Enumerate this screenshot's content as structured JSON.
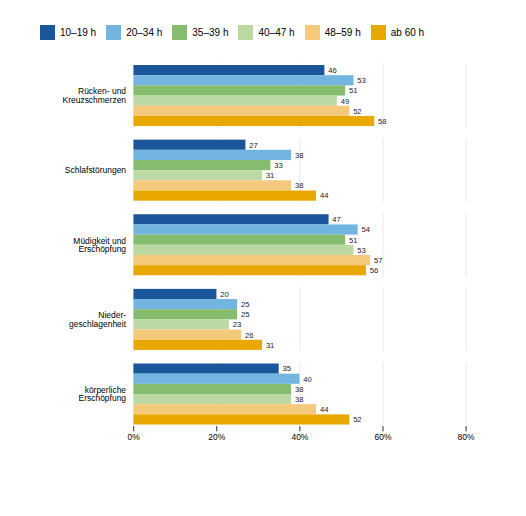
{
  "chart_data": {
    "type": "bar",
    "orientation": "horizontal",
    "categories": [
      "Rücken- und\nKreuzschmerzen",
      "Schlafstörungen",
      "Müdigkeit und\nErschöpfung",
      "Nieder-\ngeschlagenheit",
      "körperliche\nErschöpfung"
    ],
    "series": [
      {
        "name": "10–19 h",
        "color": "#1a5699",
        "values": [
          46,
          27,
          47,
          20,
          35
        ]
      },
      {
        "name": "20–34 h",
        "color": "#71b5e0",
        "values": [
          53,
          38,
          54,
          25,
          40
        ]
      },
      {
        "name": "35–39 h",
        "color": "#85bc6e",
        "values": [
          51,
          33,
          51,
          25,
          38
        ]
      },
      {
        "name": "40–47 h",
        "color": "#bdd9a3",
        "values": [
          49,
          31,
          53,
          23,
          38
        ]
      },
      {
        "name": "48–59 h",
        "color": "#f5c97a",
        "values": [
          52,
          38,
          57,
          26,
          44
        ]
      },
      {
        "name": "ab 60 h",
        "color": "#e8a800",
        "values": [
          58,
          44,
          56,
          31,
          52
        ]
      }
    ],
    "xlim": [
      0,
      80
    ],
    "xticks": [
      {
        "value": 0,
        "label": "0%"
      },
      {
        "value": 20,
        "label": "20%"
      },
      {
        "value": 40,
        "label": "40%"
      },
      {
        "value": 60,
        "label": "60%"
      },
      {
        "value": 80,
        "label": "80%"
      }
    ],
    "grid": true,
    "legend": "top",
    "data_labels": true
  }
}
